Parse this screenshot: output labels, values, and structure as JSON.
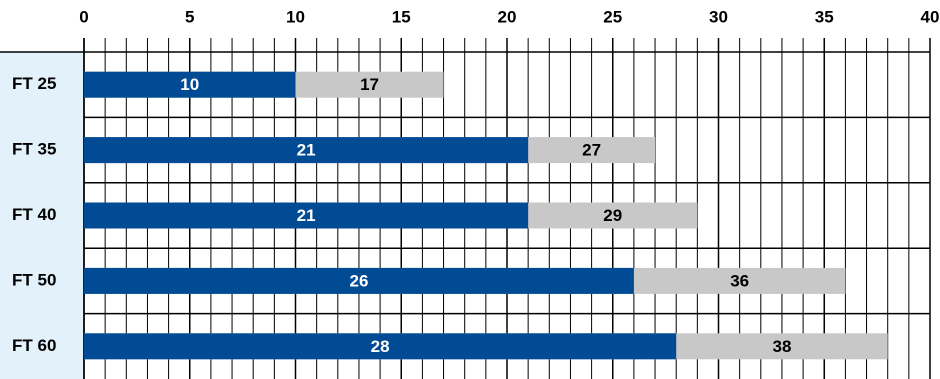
{
  "chart_data": {
    "type": "bar",
    "orientation": "horizontal",
    "overlap": true,
    "categories": [
      "FT 25",
      "FT 35",
      "FT 40",
      "FT 50",
      "FT 60"
    ],
    "series": [
      {
        "color": "#c8c8c8",
        "label_color": "#000000",
        "values": [
          17,
          27,
          29,
          36,
          38
        ]
      },
      {
        "color": "#004b93",
        "label_color": "#ffffff",
        "values": [
          10,
          21,
          21,
          26,
          28
        ]
      }
    ],
    "xlim": [
      0,
      40
    ],
    "xticks": [
      0,
      5,
      10,
      15,
      20,
      25,
      30,
      35,
      40
    ],
    "grid": true,
    "minor_grid_step": 1
  }
}
